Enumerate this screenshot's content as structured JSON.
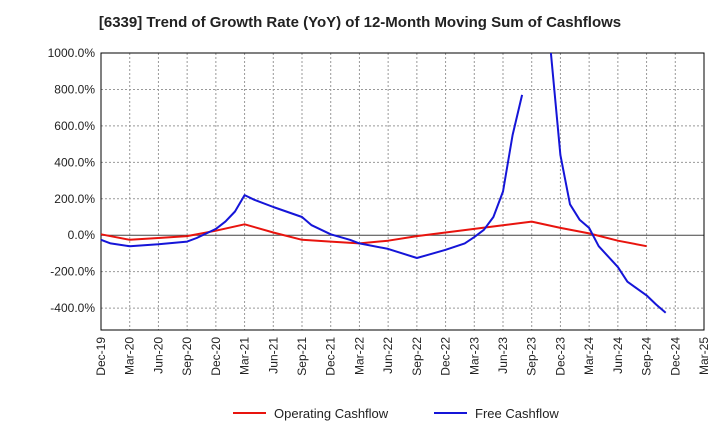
{
  "chart_data": {
    "type": "line",
    "title": "[6339]  Trend of Growth Rate (YoY) of 12-Month Moving Sum of Cashflows",
    "xlabel": "",
    "ylabel": "",
    "x": [
      "Dec-19",
      "Mar-20",
      "Jun-20",
      "Sep-20",
      "Dec-20",
      "Mar-21",
      "Jun-21",
      "Sep-21",
      "Dec-21",
      "Mar-22",
      "Jun-22",
      "Sep-22",
      "Dec-22",
      "Mar-23",
      "Jun-23",
      "Sep-23",
      "Dec-23",
      "Mar-24",
      "Jun-24",
      "Sep-24",
      "Dec-24",
      "Mar-25"
    ],
    "y_ticks": [
      "-400.0%",
      "-200.0%",
      "0.0%",
      "200.0%",
      "400.0%",
      "600.0%",
      "800.0%",
      "1000.0%"
    ],
    "ylim": [
      -520,
      1000
    ],
    "grid": true,
    "legend_position": "bottom",
    "series": [
      {
        "name": "Operating Cashflow",
        "color": "#e8140e",
        "points": [
          [
            "Dec-19",
            5
          ],
          [
            "Mar-20",
            -25
          ],
          [
            "Jun-20",
            -15
          ],
          [
            "Sep-20",
            -5
          ],
          [
            "Dec-20",
            25
          ],
          [
            "Mar-21",
            60
          ],
          [
            "Jun-21",
            15
          ],
          [
            "Sep-21",
            -25
          ],
          [
            "Dec-21",
            -35
          ],
          [
            "Mar-22",
            -45
          ],
          [
            "Jun-22",
            -30
          ],
          [
            "Sep-22",
            -5
          ],
          [
            "Dec-22",
            15
          ],
          [
            "Mar-23",
            35
          ],
          [
            "Jun-23",
            55
          ],
          [
            "Sep-23",
            75
          ],
          [
            "Dec-23",
            40
          ],
          [
            "Mar-24",
            10
          ],
          [
            "Jun-24",
            -30
          ],
          [
            "Sep-24",
            -60
          ]
        ]
      },
      {
        "name": "Free Cashflow",
        "color": "#1515d8",
        "points": [
          [
            "Dec-19",
            -25
          ],
          [
            "Jan-20",
            -45
          ],
          [
            "Mar-20",
            -60
          ],
          [
            "Jun-20",
            -50
          ],
          [
            "Sep-20",
            -35
          ],
          [
            "Oct-20",
            -15
          ],
          [
            "Dec-20",
            35
          ],
          [
            "Jan-21",
            75
          ],
          [
            "Feb-21",
            130
          ],
          [
            "Mar-21",
            220
          ],
          [
            "Apr-21",
            195
          ],
          [
            "Jun-21",
            155
          ],
          [
            "Sep-21",
            100
          ],
          [
            "Oct-21",
            55
          ],
          [
            "Dec-21",
            5
          ],
          [
            "Feb-22",
            -25
          ],
          [
            "Mar-22",
            -45
          ],
          [
            "Jun-22",
            -75
          ],
          [
            "Sep-22",
            -125
          ],
          [
            "Oct-22",
            -110
          ],
          [
            "Dec-22",
            -80
          ],
          [
            "Feb-23",
            -45
          ],
          [
            "Mar-23",
            -10
          ],
          [
            "Apr-23",
            30
          ],
          [
            "May-23",
            100
          ],
          [
            "Jun-23",
            240
          ],
          [
            "Jul-23",
            550
          ],
          [
            "Aug-23",
            770
          ],
          null,
          [
            "Nov-23",
            1000
          ],
          [
            "Dec-23",
            440
          ],
          [
            "Jan-24",
            170
          ],
          [
            "Feb-24",
            85
          ],
          [
            "Mar-24",
            40
          ],
          [
            "Apr-24",
            -60
          ],
          [
            "Jun-24",
            -175
          ],
          [
            "Jul-24",
            -255
          ],
          [
            "Sep-24",
            -330
          ],
          [
            "Oct-24",
            -380
          ],
          [
            "Nov-24",
            -425
          ]
        ]
      }
    ]
  }
}
